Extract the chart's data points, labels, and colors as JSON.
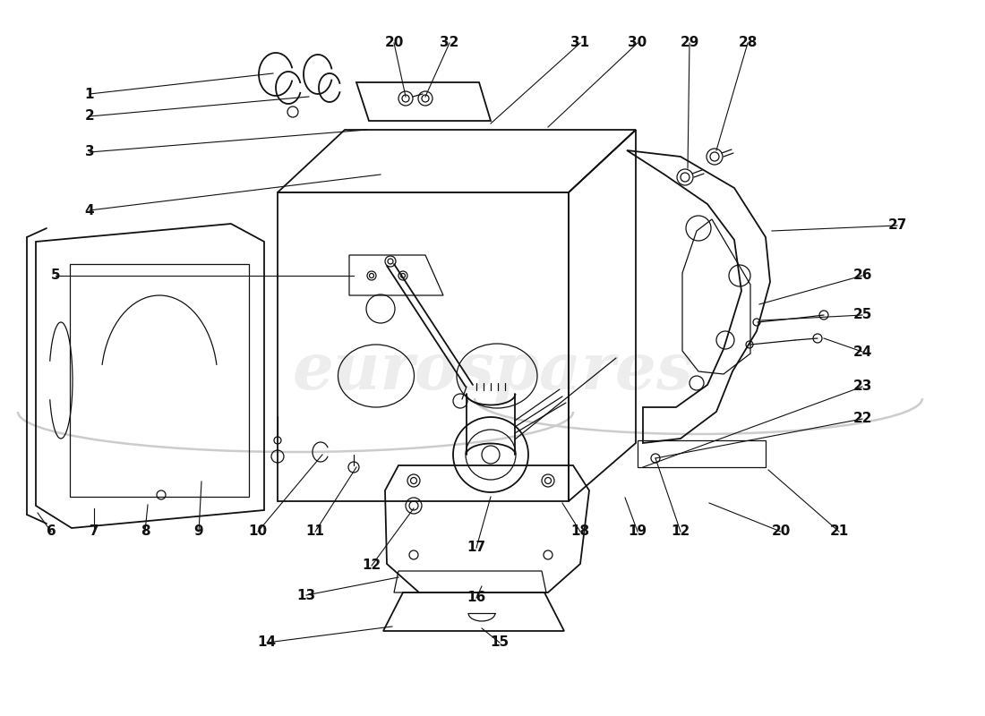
{
  "bg": "#ffffff",
  "lc": "#111111",
  "watermark": "eurospares",
  "wm_color": "#cccccc"
}
